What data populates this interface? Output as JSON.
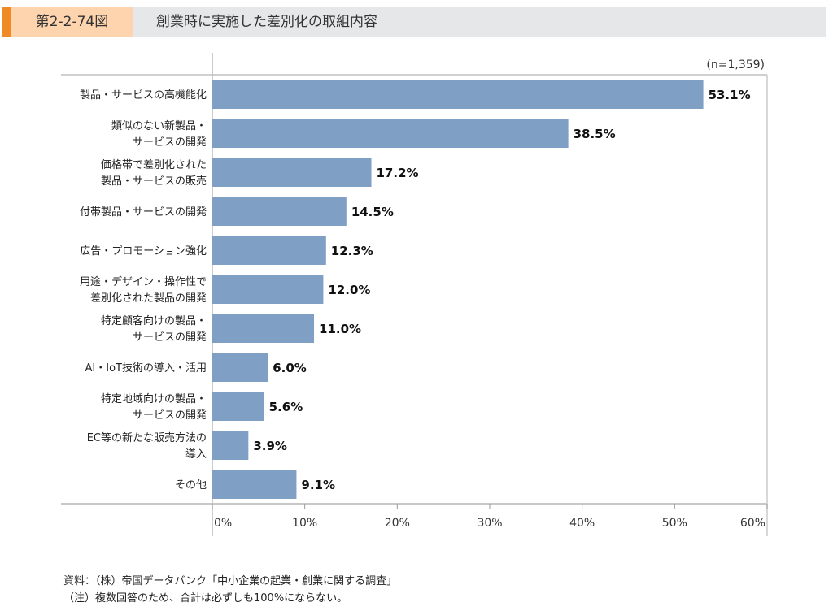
{
  "header": {
    "figure_number": "第2-2-74図",
    "title": "創業時に実施した差別化の取組内容"
  },
  "chart_data": {
    "type": "bar",
    "orientation": "horizontal",
    "title": "創業時に実施した差別化の取組内容",
    "note": "(n=1,359)",
    "categories": [
      [
        "製品・サービスの高機能化"
      ],
      [
        "類似のない新製品・",
        "サービスの開発"
      ],
      [
        "価格帯で差別化された",
        "製品・サービスの販売"
      ],
      [
        "付帯製品・サービスの開発"
      ],
      [
        "広告・プロモーション強化"
      ],
      [
        "用途・デザイン・操作性で",
        "差別化された製品の開発"
      ],
      [
        "特定顧客向けの製品・",
        "サービスの開発"
      ],
      [
        "AI・IoT技術の導入・活用"
      ],
      [
        "特定地域向けの製品・",
        "サービスの開発"
      ],
      [
        "EC等の新たな販売方法の",
        "導入"
      ],
      [
        "その他"
      ]
    ],
    "values": [
      53.1,
      38.5,
      17.2,
      14.5,
      12.3,
      12.0,
      11.0,
      6.0,
      5.6,
      3.9,
      9.1
    ],
    "value_labels": [
      "53.1%",
      "38.5%",
      "17.2%",
      "14.5%",
      "12.3%",
      "12.0%",
      "11.0%",
      "6.0%",
      "5.6%",
      "3.9%",
      "9.1%"
    ],
    "xlim": [
      0,
      60
    ],
    "xticks": [
      "0%",
      "10%",
      "20%",
      "30%",
      "40%",
      "50%",
      "60%"
    ],
    "xlabel": "",
    "ylabel": "",
    "grid": false,
    "bar_color": "#7f9fc4"
  },
  "footer": {
    "source": "資料：（株）帝国データバンク「中小企業の起業・創業に関する調査」",
    "note": "（注）複数回答のため、合計は必ずしも100%にならない。"
  }
}
